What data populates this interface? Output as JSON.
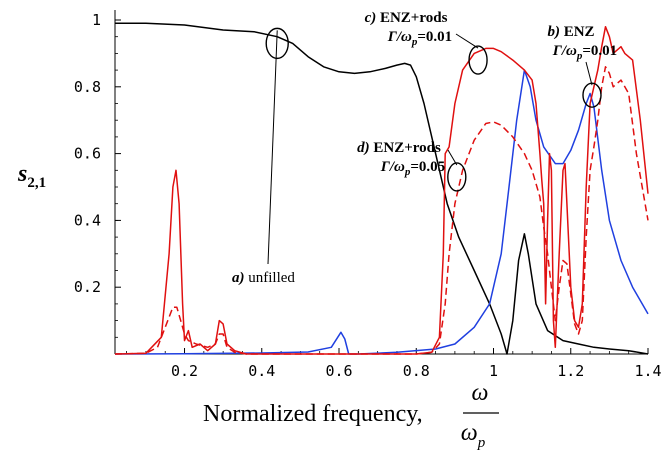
{
  "chart_data": {
    "type": "line",
    "title": "",
    "xlabel": "Normalized frequency,",
    "xlabel_fraction": {
      "numerator": "ω",
      "denominator": "ω",
      "denominator_subscript": "p"
    },
    "ylabel": {
      "base": "s",
      "subscript": "2,1"
    },
    "xlim": [
      0.02,
      1.4
    ],
    "ylim": [
      0,
      1.0
    ],
    "x_ticks": [
      {
        "value": 0.2,
        "label": "0.2"
      },
      {
        "value": 0.4,
        "label": "0.4"
      },
      {
        "value": 0.6,
        "label": "0.6"
      },
      {
        "value": 0.8,
        "label": "0.8"
      },
      {
        "value": 1.0,
        "label": "1"
      },
      {
        "value": 1.2,
        "label": "1.2"
      },
      {
        "value": 1.4,
        "label": "1.4"
      }
    ],
    "y_ticks": [
      {
        "value": 0.2,
        "label": "0.2"
      },
      {
        "value": 0.4,
        "label": "0.4"
      },
      {
        "value": 0.6,
        "label": "0.6"
      },
      {
        "value": 0.8,
        "label": "0.8"
      },
      {
        "value": 1.0,
        "label": "1"
      }
    ],
    "grid": false,
    "legend": "none",
    "series": [
      {
        "id": "unfilled",
        "color": "#000000",
        "dash": "solid",
        "points": [
          [
            0.02,
            0.99
          ],
          [
            0.1,
            0.99
          ],
          [
            0.2,
            0.985
          ],
          [
            0.3,
            0.97
          ],
          [
            0.38,
            0.965
          ],
          [
            0.44,
            0.95
          ],
          [
            0.48,
            0.93
          ],
          [
            0.52,
            0.89
          ],
          [
            0.56,
            0.86
          ],
          [
            0.6,
            0.845
          ],
          [
            0.64,
            0.84
          ],
          [
            0.68,
            0.845
          ],
          [
            0.72,
            0.855
          ],
          [
            0.75,
            0.865
          ],
          [
            0.77,
            0.87
          ],
          [
            0.785,
            0.865
          ],
          [
            0.8,
            0.83
          ],
          [
            0.82,
            0.75
          ],
          [
            0.85,
            0.6
          ],
          [
            0.88,
            0.45
          ],
          [
            0.91,
            0.35
          ],
          [
            0.95,
            0.25
          ],
          [
            0.99,
            0.15
          ],
          [
            1.02,
            0.06
          ],
          [
            1.035,
            0.0
          ],
          [
            1.05,
            0.1
          ],
          [
            1.065,
            0.28
          ],
          [
            1.08,
            0.36
          ],
          [
            1.09,
            0.3
          ],
          [
            1.11,
            0.15
          ],
          [
            1.14,
            0.07
          ],
          [
            1.18,
            0.04
          ],
          [
            1.22,
            0.03
          ],
          [
            1.26,
            0.02
          ],
          [
            1.3,
            0.015
          ],
          [
            1.35,
            0.01
          ],
          [
            1.4,
            0.0
          ]
        ]
      },
      {
        "id": "enz",
        "color": "#2040e0",
        "dash": "solid",
        "points": [
          [
            0.02,
            0.0
          ],
          [
            0.2,
            0.001
          ],
          [
            0.4,
            0.003
          ],
          [
            0.52,
            0.006
          ],
          [
            0.58,
            0.02
          ],
          [
            0.605,
            0.065
          ],
          [
            0.615,
            0.045
          ],
          [
            0.625,
            0.0
          ],
          [
            0.65,
            0.0
          ],
          [
            0.75,
            0.005
          ],
          [
            0.85,
            0.015
          ],
          [
            0.9,
            0.03
          ],
          [
            0.95,
            0.08
          ],
          [
            0.99,
            0.15
          ],
          [
            1.02,
            0.3
          ],
          [
            1.04,
            0.5
          ],
          [
            1.06,
            0.7
          ],
          [
            1.08,
            0.85
          ],
          [
            1.095,
            0.8
          ],
          [
            1.11,
            0.7
          ],
          [
            1.13,
            0.62
          ],
          [
            1.16,
            0.57
          ],
          [
            1.18,
            0.57
          ],
          [
            1.2,
            0.61
          ],
          [
            1.22,
            0.67
          ],
          [
            1.24,
            0.75
          ],
          [
            1.25,
            0.78
          ],
          [
            1.26,
            0.74
          ],
          [
            1.28,
            0.55
          ],
          [
            1.3,
            0.4
          ],
          [
            1.33,
            0.28
          ],
          [
            1.36,
            0.2
          ],
          [
            1.4,
            0.12
          ]
        ]
      },
      {
        "id": "enz-rods-0.01",
        "color": "#e01010",
        "dash": "solid",
        "points": [
          [
            0.02,
            0.0
          ],
          [
            0.1,
            0.002
          ],
          [
            0.14,
            0.05
          ],
          [
            0.16,
            0.3
          ],
          [
            0.17,
            0.5
          ],
          [
            0.178,
            0.55
          ],
          [
            0.186,
            0.45
          ],
          [
            0.195,
            0.15
          ],
          [
            0.2,
            0.04
          ],
          [
            0.21,
            0.07
          ],
          [
            0.22,
            0.02
          ],
          [
            0.24,
            0.03
          ],
          [
            0.26,
            0.01
          ],
          [
            0.28,
            0.03
          ],
          [
            0.29,
            0.1
          ],
          [
            0.3,
            0.09
          ],
          [
            0.31,
            0.03
          ],
          [
            0.33,
            0.01
          ],
          [
            0.36,
            0.0
          ],
          [
            0.45,
            0.0
          ],
          [
            0.6,
            0.0
          ],
          [
            0.7,
            0.0
          ],
          [
            0.8,
            0.0
          ],
          [
            0.84,
            0.005
          ],
          [
            0.86,
            0.05
          ],
          [
            0.87,
            0.3
          ],
          [
            0.875,
            0.6
          ],
          [
            0.885,
            0.62
          ],
          [
            0.9,
            0.75
          ],
          [
            0.92,
            0.85
          ],
          [
            0.95,
            0.9
          ],
          [
            0.98,
            0.915
          ],
          [
            1.0,
            0.915
          ],
          [
            1.02,
            0.905
          ],
          [
            1.05,
            0.88
          ],
          [
            1.08,
            0.85
          ],
          [
            1.1,
            0.82
          ],
          [
            1.11,
            0.75
          ],
          [
            1.12,
            0.6
          ],
          [
            1.125,
            0.52
          ],
          [
            1.13,
            0.45
          ],
          [
            1.135,
            0.15
          ],
          [
            1.14,
            0.4
          ],
          [
            1.145,
            0.6
          ],
          [
            1.15,
            0.55
          ],
          [
            1.155,
            0.1
          ],
          [
            1.16,
            0.02
          ],
          [
            1.17,
            0.3
          ],
          [
            1.18,
            0.55
          ],
          [
            1.185,
            0.57
          ],
          [
            1.19,
            0.45
          ],
          [
            1.2,
            0.2
          ],
          [
            1.21,
            0.1
          ],
          [
            1.22,
            0.08
          ],
          [
            1.23,
            0.15
          ],
          [
            1.24,
            0.5
          ],
          [
            1.25,
            0.75
          ],
          [
            1.26,
            0.8
          ],
          [
            1.27,
            0.85
          ],
          [
            1.28,
            0.92
          ],
          [
            1.29,
            0.98
          ],
          [
            1.3,
            0.95
          ],
          [
            1.31,
            0.9
          ],
          [
            1.32,
            0.91
          ],
          [
            1.33,
            0.92
          ],
          [
            1.34,
            0.9
          ],
          [
            1.36,
            0.88
          ],
          [
            1.38,
            0.7
          ],
          [
            1.4,
            0.48
          ]
        ]
      },
      {
        "id": "enz-rods-0.05",
        "color": "#e01010",
        "dash": "dashed",
        "points": [
          [
            0.02,
            0.0
          ],
          [
            0.1,
            0.002
          ],
          [
            0.13,
            0.02
          ],
          [
            0.15,
            0.08
          ],
          [
            0.17,
            0.14
          ],
          [
            0.18,
            0.14
          ],
          [
            0.19,
            0.1
          ],
          [
            0.2,
            0.06
          ],
          [
            0.21,
            0.04
          ],
          [
            0.23,
            0.03
          ],
          [
            0.26,
            0.02
          ],
          [
            0.28,
            0.03
          ],
          [
            0.29,
            0.06
          ],
          [
            0.3,
            0.06
          ],
          [
            0.31,
            0.02
          ],
          [
            0.33,
            0.005
          ],
          [
            0.36,
            0.0
          ],
          [
            0.5,
            0.0
          ],
          [
            0.7,
            0.0
          ],
          [
            0.8,
            0.0
          ],
          [
            0.84,
            0.005
          ],
          [
            0.86,
            0.03
          ],
          [
            0.875,
            0.15
          ],
          [
            0.885,
            0.3
          ],
          [
            0.9,
            0.45
          ],
          [
            0.92,
            0.55
          ],
          [
            0.95,
            0.64
          ],
          [
            0.98,
            0.69
          ],
          [
            1.0,
            0.695
          ],
          [
            1.02,
            0.685
          ],
          [
            1.05,
            0.65
          ],
          [
            1.08,
            0.6
          ],
          [
            1.1,
            0.55
          ],
          [
            1.12,
            0.47
          ],
          [
            1.13,
            0.38
          ],
          [
            1.14,
            0.3
          ],
          [
            1.15,
            0.2
          ],
          [
            1.16,
            0.1
          ],
          [
            1.17,
            0.2
          ],
          [
            1.18,
            0.28
          ],
          [
            1.19,
            0.27
          ],
          [
            1.2,
            0.18
          ],
          [
            1.21,
            0.09
          ],
          [
            1.22,
            0.06
          ],
          [
            1.23,
            0.1
          ],
          [
            1.24,
            0.35
          ],
          [
            1.25,
            0.55
          ],
          [
            1.26,
            0.62
          ],
          [
            1.27,
            0.7
          ],
          [
            1.28,
            0.8
          ],
          [
            1.29,
            0.86
          ],
          [
            1.3,
            0.84
          ],
          [
            1.31,
            0.8
          ],
          [
            1.33,
            0.82
          ],
          [
            1.35,
            0.78
          ],
          [
            1.37,
            0.6
          ],
          [
            1.4,
            0.4
          ]
        ]
      }
    ],
    "annotations": [
      {
        "id": "ann-a",
        "letter": "a)",
        "text": "unfilled",
        "line2": "",
        "target": [
          0.44,
          0.93
        ]
      },
      {
        "id": "ann-b",
        "letter": "b)",
        "text": "ENZ",
        "line2": "Γ/ω",
        "line2_sub": "p",
        "line2_value": "=0.01",
        "target": [
          1.255,
          0.775
        ]
      },
      {
        "id": "ann-c",
        "letter": "c)",
        "text": "ENZ+rods",
        "line2": "Γ/ω",
        "line2_sub": "p",
        "line2_value": "=0.01",
        "target": [
          0.96,
          0.88
        ]
      },
      {
        "id": "ann-d",
        "letter": "d)",
        "text": "ENZ+rods",
        "line2": "Γ/ω",
        "line2_sub": "p",
        "line2_value": "=0.05",
        "target": [
          0.905,
          0.53
        ]
      }
    ]
  }
}
